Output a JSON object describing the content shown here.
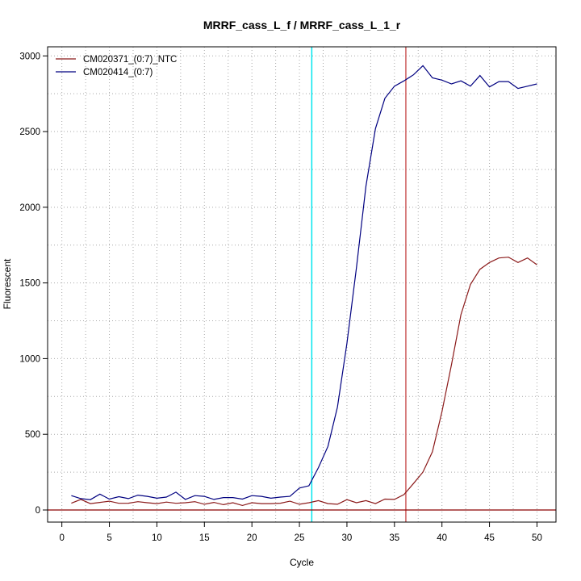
{
  "chart_data": {
    "type": "line",
    "title": "MRRF_cass_L_f / MRRF_cass_L_1_r",
    "xlabel": "Cycle",
    "ylabel": "Fluorescent",
    "xlim": [
      -1.5,
      52
    ],
    "ylim": [
      -80,
      3060
    ],
    "x_ticks": [
      0,
      5,
      10,
      15,
      20,
      25,
      30,
      35,
      40,
      45,
      50
    ],
    "x_tick_labels": [
      "0",
      "5",
      "10",
      "15",
      "20",
      "25",
      "30",
      "35",
      "40",
      "45",
      "50"
    ],
    "y_ticks": [
      0,
      500,
      1000,
      1500,
      2000,
      2500,
      3000
    ],
    "y_tick_labels": [
      "0",
      "500",
      "1000",
      "1500",
      "2000",
      "2500",
      "3000"
    ],
    "grid": true,
    "grid_x": [
      2.5,
      7.5,
      12.5,
      17.5,
      22.5,
      27.5,
      32.5,
      37.5,
      42.5,
      47.5
    ],
    "grid_y": [
      250,
      750,
      1250,
      1750,
      2250,
      2750
    ],
    "legend_position": "top-left",
    "threshold_y": 0,
    "threshold_color": "#8b0000",
    "markers": [
      {
        "x": 26.3,
        "color": "#00e5ee"
      },
      {
        "x": 36.2,
        "color": "#cd5c5c"
      }
    ],
    "x": [
      1,
      2,
      3,
      4,
      5,
      6,
      7,
      8,
      9,
      10,
      11,
      12,
      13,
      14,
      15,
      16,
      17,
      18,
      19,
      20,
      21,
      22,
      23,
      24,
      25,
      26,
      27,
      28,
      29,
      30,
      31,
      32,
      33,
      34,
      35,
      36,
      37,
      38,
      39,
      40,
      41,
      42,
      43,
      44,
      45,
      46,
      47,
      48,
      49,
      50
    ],
    "series": [
      {
        "name": "CM020371_(0:7)_NTC",
        "color": "#8b1a1a",
        "values": [
          45,
          70,
          42,
          50,
          58,
          44,
          45,
          55,
          48,
          42,
          52,
          44,
          48,
          55,
          38,
          50,
          35,
          48,
          30,
          48,
          42,
          42,
          45,
          58,
          38,
          48,
          62,
          42,
          38,
          68,
          48,
          62,
          42,
          72,
          70,
          102,
          175,
          250,
          385,
          650,
          960,
          1290,
          1490,
          1590,
          1635,
          1665,
          1670,
          1635,
          1665,
          1620
        ]
      },
      {
        "name": "CM020414_(0:7)",
        "color": "#000080",
        "values": [
          95,
          75,
          68,
          105,
          72,
          88,
          75,
          98,
          90,
          78,
          85,
          118,
          70,
          95,
          90,
          70,
          82,
          82,
          72,
          95,
          90,
          78,
          85,
          90,
          145,
          160,
          280,
          420,
          680,
          1100,
          1600,
          2140,
          2520,
          2720,
          2800,
          2835,
          2875,
          2935,
          2855,
          2840,
          2815,
          2835,
          2800,
          2870,
          2795,
          2830,
          2830,
          2785,
          2800,
          2815
        ]
      }
    ]
  }
}
